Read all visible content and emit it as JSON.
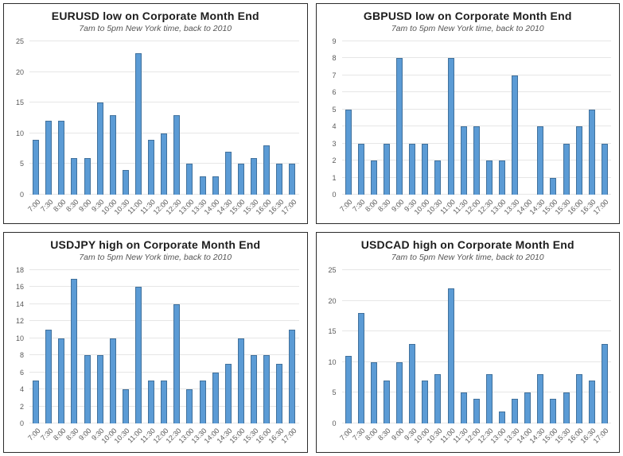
{
  "page": {
    "background": "#ffffff"
  },
  "colors": {
    "bar_fill": "#5b9bd5",
    "bar_border": "#41719c",
    "gridline": "#e6e6e6",
    "title_text": "#1d1d1d",
    "subtitle_text": "#555555",
    "axis_label_text": "#595959",
    "panel_border": "#2b2b2b"
  },
  "chart_data": [
    {
      "type": "bar",
      "title": "EURUSD low on Corporate Month End",
      "subtitle": "7am to 5pm New York time, back to 2010",
      "categories": [
        "7:00",
        "7:30",
        "8:00",
        "8:30",
        "9:00",
        "9:30",
        "10:00",
        "10:30",
        "11:00",
        "11:30",
        "12:00",
        "12:30",
        "13:00",
        "13:30",
        "14:00",
        "14:30",
        "15:00",
        "15:30",
        "16:00",
        "16:30",
        "17:00"
      ],
      "values": [
        9,
        12,
        12,
        6,
        6,
        15,
        13,
        4,
        23,
        9,
        10,
        13,
        5,
        3,
        3,
        7,
        5,
        6,
        8,
        5,
        5
      ],
      "xlabel": "",
      "ylabel": "",
      "ylim": [
        0,
        25
      ],
      "ytick_step": 5,
      "grid": true,
      "legend": "none"
    },
    {
      "type": "bar",
      "title": "GBPUSD low on Corporate Month End",
      "subtitle": "7am to 5pm New York time, back to 2010",
      "categories": [
        "7:00",
        "7:30",
        "8:00",
        "8:30",
        "9:00",
        "9:30",
        "10:00",
        "10:30",
        "11:00",
        "11:30",
        "12:00",
        "12:30",
        "13:00",
        "13:30",
        "14:00",
        "14:30",
        "15:00",
        "15:30",
        "16:00",
        "16:30",
        "17:00"
      ],
      "values": [
        5,
        3,
        2,
        3,
        8,
        3,
        3,
        2,
        8,
        4,
        4,
        2,
        2,
        7,
        0,
        4,
        1,
        3,
        4,
        5,
        3
      ],
      "xlabel": "",
      "ylabel": "",
      "ylim": [
        0,
        9
      ],
      "ytick_step": 1,
      "grid": true,
      "legend": "none"
    },
    {
      "type": "bar",
      "title": "USDJPY high on Corporate Month End",
      "subtitle": "7am to 5pm New York time, back to 2010",
      "categories": [
        "7:00",
        "7:30",
        "8:00",
        "8:30",
        "9:00",
        "9:30",
        "10:00",
        "10:30",
        "11:00",
        "11:30",
        "12:00",
        "12:30",
        "13:00",
        "13:30",
        "14:00",
        "14:30",
        "15:00",
        "15:30",
        "16:00",
        "16:30",
        "17:00"
      ],
      "values": [
        5,
        11,
        10,
        17,
        8,
        8,
        10,
        4,
        16,
        5,
        5,
        14,
        4,
        5,
        6,
        7,
        10,
        8,
        8,
        7,
        11
      ],
      "xlabel": "",
      "ylabel": "",
      "ylim": [
        0,
        18
      ],
      "ytick_step": 2,
      "grid": true,
      "legend": "none"
    },
    {
      "type": "bar",
      "title": "USDCAD high on Corporate Month End",
      "subtitle": "7am to 5pm New York time, back to 2010",
      "categories": [
        "7:00",
        "7:30",
        "8:00",
        "8:30",
        "9:00",
        "9:30",
        "10:00",
        "10:30",
        "11:00",
        "11:30",
        "12:00",
        "12:30",
        "13:00",
        "13:30",
        "14:00",
        "14:30",
        "15:00",
        "15:30",
        "16:00",
        "16:30",
        "17:00"
      ],
      "values": [
        11,
        18,
        10,
        7,
        10,
        13,
        7,
        8,
        22,
        5,
        4,
        8,
        2,
        4,
        5,
        8,
        4,
        5,
        8,
        7,
        13
      ],
      "xlabel": "",
      "ylabel": "",
      "ylim": [
        0,
        25
      ],
      "ytick_step": 5,
      "grid": true,
      "legend": "none"
    }
  ]
}
